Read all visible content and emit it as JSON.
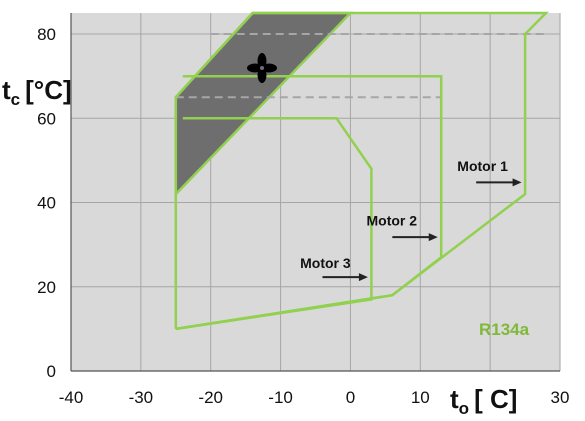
{
  "chart_data": {
    "type": "line",
    "xlabel": {
      "main": "t",
      "sub": "o",
      "unit": "[ C]"
    },
    "ylabel": {
      "main": "t",
      "sub": "c",
      "unit": "[°C]"
    },
    "xlim": [
      -40,
      30
    ],
    "ylim": [
      0,
      85
    ],
    "x_ticks": [
      -40,
      -30,
      -20,
      -10,
      0,
      10,
      30
    ],
    "y_ticks": [
      0,
      20,
      40,
      60,
      80
    ],
    "grid": true,
    "colors": {
      "background": "#d9d9d9",
      "grid": "#a6a6a6",
      "envelope": "#92d050",
      "fill": "#6e6e6e",
      "dashed": "#a6a6a6",
      "text": "#111111",
      "refrigerant": "#7fb83a"
    },
    "series": [
      {
        "name": "Motor 1",
        "points": [
          [
            -25,
            10
          ],
          [
            6,
            18
          ],
          [
            25,
            42
          ],
          [
            25,
            80
          ],
          [
            28,
            85
          ],
          [
            -14,
            85
          ],
          [
            -25,
            65
          ],
          [
            -25,
            10
          ]
        ]
      },
      {
        "name": "Motor 2",
        "points": [
          [
            -25,
            10
          ],
          [
            6,
            18
          ],
          [
            13,
            27
          ],
          [
            13,
            70
          ],
          [
            -24,
            70
          ]
        ]
      },
      {
        "name": "Motor 3",
        "points": [
          [
            -25,
            10
          ],
          [
            3,
            17
          ],
          [
            3,
            48
          ],
          [
            -2,
            60
          ],
          [
            -24,
            60
          ]
        ]
      }
    ],
    "shaded_region": {
      "points": [
        [
          -25,
          42
        ],
        [
          -25,
          65
        ],
        [
          -14,
          85
        ],
        [
          0,
          85
        ],
        [
          -25,
          42
        ]
      ]
    },
    "dashed_lines": [
      {
        "x": [
          -20,
          28
        ],
        "y": 80
      },
      {
        "x": [
          -25,
          13
        ],
        "y": 65
      }
    ],
    "annotations": [
      {
        "text": "Motor 1",
        "x": 15.3,
        "y": 47.5,
        "arrow": {
          "from": [
            18,
            44.8
          ],
          "to": [
            24.5,
            44.8
          ]
        }
      },
      {
        "text": "Motor 2",
        "x": 2.3,
        "y": 34.5,
        "arrow": {
          "from": [
            6,
            31.8
          ],
          "to": [
            12.5,
            31.8
          ]
        }
      },
      {
        "text": "Motor 3",
        "x": -7.2,
        "y": 24.5,
        "arrow": {
          "from": [
            -4,
            22.3
          ],
          "to": [
            2.5,
            22.3
          ]
        }
      }
    ],
    "refrigerant": "R134a",
    "icon": "fan-icon"
  }
}
